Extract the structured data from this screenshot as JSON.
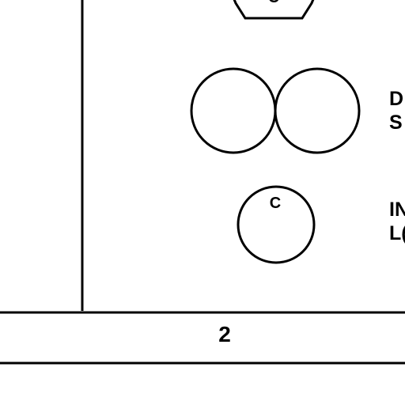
{
  "legend": {
    "hexagon_symbol": {
      "letter": "C",
      "icon": "hexagon-symbol-icon"
    },
    "dual_circle_symbol": {
      "icon": "double-circle-symbol-icon",
      "label_line1": "D",
      "label_line2": "S"
    },
    "single_circle_symbol": {
      "letter": "C",
      "icon": "circle-c-symbol-icon",
      "label_line1": "IN",
      "label_line2": "L("
    }
  },
  "footer": {
    "page_number": "2"
  },
  "colors": {
    "ink": "#000000",
    "paper": "#ffffff"
  }
}
